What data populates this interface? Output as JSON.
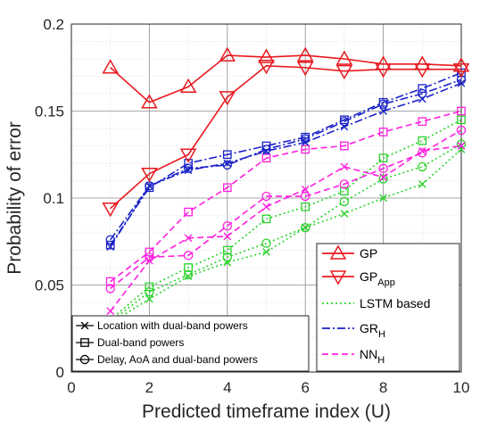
{
  "chart_data": {
    "type": "line",
    "xlabel": "Predicted timeframe index (U)",
    "ylabel": "Probability of error",
    "xlim": [
      0,
      10
    ],
    "ylim": [
      0,
      0.2
    ],
    "xticks": [
      0,
      2,
      4,
      6,
      8,
      10
    ],
    "yticks": [
      0,
      0.05,
      0.1,
      0.15,
      0.2
    ],
    "ytick_labels": [
      "0",
      "0.05",
      "0.1",
      "0.15",
      "0.2"
    ],
    "grid": "major and minor",
    "x": [
      1,
      2,
      3,
      4,
      5,
      6,
      7,
      8,
      9,
      10
    ],
    "series": [
      {
        "name": "GP",
        "color": "#e8191f",
        "style": "solid",
        "marker": "triangle-up",
        "values": [
          0.175,
          0.155,
          0.164,
          0.182,
          0.181,
          0.182,
          0.18,
          0.177,
          0.177,
          0.176
        ]
      },
      {
        "name": "GP_App",
        "color": "#e8191f",
        "style": "solid",
        "marker": "triangle-down",
        "values": [
          0.094,
          0.114,
          0.125,
          0.158,
          0.176,
          0.175,
          0.173,
          0.174,
          0.174,
          0.174
        ]
      },
      {
        "name": "GR_H Location with dual-band powers",
        "color": "#1a22c8",
        "style": "dashdot",
        "marker": "x",
        "values": [
          0.072,
          0.107,
          0.116,
          0.12,
          0.127,
          0.132,
          0.141,
          0.15,
          0.157,
          0.166
        ]
      },
      {
        "name": "GR_H Dual-band powers",
        "color": "#1a22c8",
        "style": "dashdot",
        "marker": "square",
        "values": [
          0.073,
          0.106,
          0.12,
          0.125,
          0.13,
          0.135,
          0.145,
          0.155,
          0.163,
          0.172
        ]
      },
      {
        "name": "GR_H Delay, AoA and dual-band powers",
        "color": "#1a22c8",
        "style": "dashdot",
        "marker": "circle",
        "values": [
          0.076,
          0.107,
          0.117,
          0.119,
          0.128,
          0.134,
          0.144,
          0.154,
          0.16,
          0.168
        ]
      },
      {
        "name": "NN_H Location with dual-band powers",
        "color": "#ff1fe0",
        "style": "dash",
        "marker": "x",
        "values": [
          0.035,
          0.064,
          0.077,
          0.078,
          0.095,
          0.105,
          0.118,
          0.112,
          0.127,
          0.13
        ]
      },
      {
        "name": "NN_H Dual-band powers",
        "color": "#ff1fe0",
        "style": "dash",
        "marker": "square",
        "values": [
          0.052,
          0.069,
          0.092,
          0.106,
          0.123,
          0.128,
          0.13,
          0.138,
          0.144,
          0.15
        ]
      },
      {
        "name": "NN_H Delay, AoA and dual-band powers",
        "color": "#ff1fe0",
        "style": "dash",
        "marker": "circle",
        "values": [
          0.048,
          0.066,
          0.067,
          0.084,
          0.101,
          0.101,
          0.108,
          0.117,
          0.126,
          0.139
        ]
      },
      {
        "name": "LSTM based Location with dual-band powers",
        "color": "#2bd22b",
        "style": "dot",
        "marker": "x",
        "values": [
          0.028,
          0.042,
          0.055,
          0.063,
          0.069,
          0.083,
          0.091,
          0.1,
          0.108,
          0.128
        ]
      },
      {
        "name": "LSTM based Dual-band powers",
        "color": "#2bd22b",
        "style": "dot",
        "marker": "square",
        "values": [
          0.03,
          0.049,
          0.06,
          0.07,
          0.088,
          0.095,
          0.104,
          0.123,
          0.133,
          0.145
        ]
      },
      {
        "name": "LSTM based Delay, AoA and dual-band powers",
        "color": "#2bd22b",
        "style": "dot",
        "marker": "circle",
        "values": [
          0.029,
          0.046,
          0.056,
          0.066,
          0.074,
          0.083,
          0.098,
          0.111,
          0.118,
          0.131
        ]
      }
    ],
    "legend_right": {
      "placement": "bottom-right",
      "entries": [
        {
          "label": "GP",
          "color": "#e8191f",
          "style": "solid",
          "marker": "triangle-up"
        },
        {
          "label": "GP",
          "sub": "App",
          "color": "#e8191f",
          "style": "solid",
          "marker": "triangle-down"
        },
        {
          "label": "LSTM based",
          "color": "#2bd22b",
          "style": "dot",
          "marker": "none"
        },
        {
          "label": "GR",
          "sub": "H",
          "color": "#1a22c8",
          "style": "dashdot",
          "marker": "none"
        },
        {
          "label": "NN",
          "sub": "H",
          "color": "#ff1fe0",
          "style": "dash",
          "marker": "none"
        }
      ]
    },
    "legend_left": {
      "placement": "bottom-left",
      "entries": [
        {
          "label": "Location with dual-band powers",
          "marker": "x"
        },
        {
          "label": "Dual-band powers",
          "marker": "square"
        },
        {
          "label": "Delay, AoA and dual-band powers",
          "marker": "circle"
        }
      ]
    }
  }
}
